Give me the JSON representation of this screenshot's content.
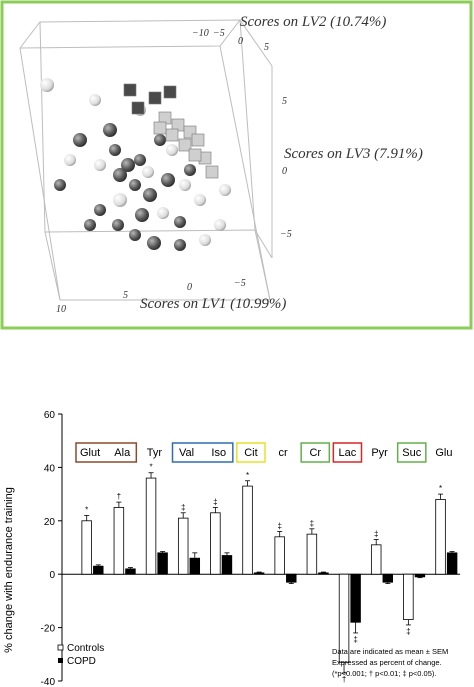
{
  "colors": {
    "panel_border": "#8ccd5a",
    "sphere_light": "#f0f0f0",
    "sphere_dark": "#5a5a5a",
    "cube": "#cfcfcf",
    "cube_dark": "#4a4a4a",
    "bar_controls": "#ffffff",
    "bar_copd": "#000000"
  },
  "pca": {
    "axis_lv1": "Scores on LV1 (10.99%)",
    "axis_lv2": "Scores on LV2 (10.74%)",
    "axis_lv3": "Scores on LV3 (7.91%)",
    "lv2_ticks": [
      "−10",
      "−5",
      "0"
    ],
    "lv2_side_ticks": [
      "5"
    ],
    "lv3_ticks": [
      "5",
      "0",
      "−5"
    ],
    "lv1_ticks": [
      "10",
      "5",
      "0",
      "−5"
    ]
  },
  "chart_data": {
    "type": "bar",
    "ylabel": "% change with endurance training",
    "ylim": [
      -40,
      60
    ],
    "yticks": [
      "60",
      "40",
      "20",
      "0",
      "-20",
      "-40"
    ],
    "grid": false,
    "legend_position": "bottom-left",
    "categories": [
      "Glut",
      "Ala",
      "Tyr",
      "Val",
      "Iso",
      "Cit",
      "cr",
      "Cr",
      "Lac",
      "Pyr",
      "Suc",
      "Glu"
    ],
    "boxed_groups": [
      {
        "labels": [
          "Glut",
          "Ala"
        ],
        "color": "#8b4a2b"
      },
      {
        "labels": [
          "Val",
          "Iso"
        ],
        "color": "#2f6fb0"
      },
      {
        "labels": [
          "Cit"
        ],
        "color": "#e8e02a"
      },
      {
        "labels": [
          "Cr"
        ],
        "color": "#62b04a"
      },
      {
        "labels": [
          "Lac"
        ],
        "color": "#d8262a"
      },
      {
        "labels": [
          "Suc"
        ],
        "color": "#62b04a"
      }
    ],
    "series": [
      {
        "name": "Controls",
        "values": [
          20,
          25,
          36,
          21,
          23,
          33,
          14,
          15,
          -33,
          11,
          -17,
          28
        ],
        "errors": [
          2,
          2,
          2,
          2,
          2,
          2,
          2,
          2,
          4,
          2,
          2,
          2
        ],
        "markers": [
          "*",
          "†",
          "*",
          "‡",
          "‡",
          "*",
          "‡",
          "‡",
          "†",
          "‡",
          "‡",
          "*"
        ]
      },
      {
        "name": "COPD",
        "values": [
          3,
          2,
          8,
          6,
          7,
          0.5,
          -3,
          0.5,
          -18,
          -3,
          -1,
          8
        ],
        "errors": [
          0.5,
          0.5,
          0.5,
          2,
          1,
          0.3,
          0.5,
          0.3,
          4,
          0.5,
          0.3,
          0.5
        ],
        "markers": [
          "",
          "",
          "",
          "",
          "",
          "",
          "",
          "",
          "‡",
          "",
          "",
          ""
        ]
      }
    ],
    "note": [
      "Data are indicated as mean ± SEM",
      "Expressed as percent of change.",
      "(*p<0.001; † p<0.01; ‡ p<0.05)."
    ]
  }
}
